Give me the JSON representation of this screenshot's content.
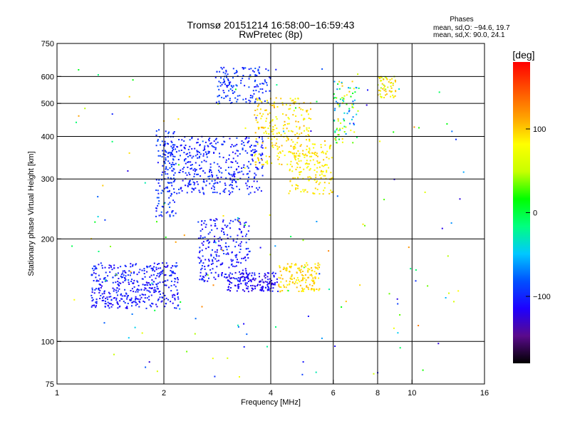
{
  "header": {
    "title": "Tromsø 20151214 16:58:00−16:59:43",
    "subtitle": "RwPretec (8p)",
    "stats_heading": "Phases",
    "stats_line_o": "mean, sd,O: −94.6, 19.7",
    "stats_line_x": "mean, sd,X:  90.0, 24.1"
  },
  "colorbar": {
    "label": "[deg]",
    "ticks": [
      {
        "value": 100,
        "label": "100"
      },
      {
        "value": 0,
        "label": "0"
      },
      {
        "value": -100,
        "label": "−100"
      }
    ],
    "range": [
      -180,
      180
    ],
    "colormap": [
      "#000000",
      "#5a0a8c",
      "#1e00ff",
      "#0050ff",
      "#00c8ff",
      "#00ff80",
      "#00ff00",
      "#c8ff00",
      "#ffff00",
      "#ffa000",
      "#ff5000",
      "#ff0000"
    ]
  },
  "chart_data": {
    "type": "scatter",
    "xlabel": "Frequency [MHz]",
    "ylabel": "Stationary phase Virtual Height [km]",
    "x_scale": "log",
    "y_scale": "log",
    "xlim": [
      1,
      16
    ],
    "ylim": [
      75,
      750
    ],
    "x_ticks": [
      {
        "value": 1,
        "label": "1"
      },
      {
        "value": 2,
        "label": "2"
      },
      {
        "value": 4,
        "label": "4"
      },
      {
        "value": 6,
        "label": "6"
      },
      {
        "value": 8,
        "label": "8"
      },
      {
        "value": 10,
        "label": "10"
      },
      {
        "value": 16,
        "label": "16"
      }
    ],
    "y_ticks": [
      {
        "value": 75,
        "label": "75"
      },
      {
        "value": 100,
        "label": "100"
      },
      {
        "value": 200,
        "label": "200"
      },
      {
        "value": 300,
        "label": "300"
      },
      {
        "value": 400,
        "label": "400"
      },
      {
        "value": 500,
        "label": "500"
      },
      {
        "value": 600,
        "label": "600"
      },
      {
        "value": 750,
        "label": "750"
      }
    ],
    "x_gridlines": [
      2,
      4,
      6,
      8,
      10
    ],
    "y_gridlines": [
      100,
      200,
      300,
      400,
      500,
      600
    ],
    "grid": true,
    "color_variable": "phase [deg]",
    "clusters": [
      {
        "x": [
          1.25,
          2.2
        ],
        "y": [
          125,
          170
        ],
        "phase": [
          -120,
          -90
        ],
        "count": 420
      },
      {
        "x": [
          1.9,
          2.15
        ],
        "y": [
          230,
          420
        ],
        "phase": [
          -110,
          -80
        ],
        "count": 120
      },
      {
        "x": [
          2.0,
          3.8
        ],
        "y": [
          270,
          400
        ],
        "phase": [
          -115,
          -85
        ],
        "count": 420
      },
      {
        "x": [
          2.5,
          3.5
        ],
        "y": [
          150,
          230
        ],
        "phase": [
          -120,
          -90
        ],
        "count": 240
      },
      {
        "x": [
          3.0,
          4.2
        ],
        "y": [
          140,
          160
        ],
        "phase": [
          -130,
          -100
        ],
        "count": 160
      },
      {
        "x": [
          2.8,
          4.0
        ],
        "y": [
          500,
          640
        ],
        "phase": [
          -110,
          -80
        ],
        "count": 150
      },
      {
        "x": [
          3.6,
          5.2
        ],
        "y": [
          330,
          520
        ],
        "phase": [
          70,
          110
        ],
        "count": 230
      },
      {
        "x": [
          4.2,
          5.5
        ],
        "y": [
          140,
          170
        ],
        "phase": [
          80,
          110
        ],
        "count": 150
      },
      {
        "x": [
          4.5,
          6.0
        ],
        "y": [
          270,
          380
        ],
        "phase": [
          75,
          105
        ],
        "count": 160
      },
      {
        "x": [
          6.0,
          7.0
        ],
        "y": [
          380,
          580
        ],
        "phase": [
          -80,
          110
        ],
        "count": 90
      },
      {
        "x": [
          8.0,
          9.0
        ],
        "y": [
          520,
          600
        ],
        "phase": [
          40,
          110
        ],
        "count": 60
      },
      {
        "x": [
          1.05,
          14.0
        ],
        "y": [
          78,
          650
        ],
        "phase": [
          -130,
          130
        ],
        "count": 160
      }
    ]
  }
}
